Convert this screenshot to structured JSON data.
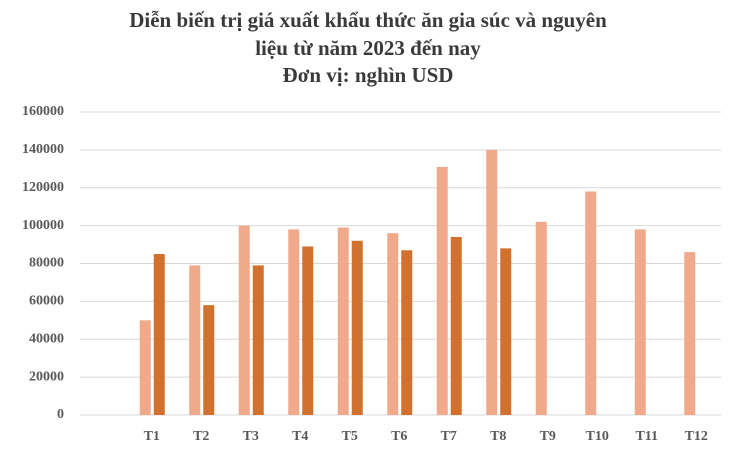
{
  "chart_data": {
    "type": "bar",
    "title": [
      "Diễn biến trị giá xuất khẩu thức ăn gia súc và nguyên",
      "liệu từ năm 2023 đến nay",
      "Đơn vị: nghìn USD"
    ],
    "categories": [
      "T1",
      "T2",
      "T3",
      "T4",
      "T5",
      "T6",
      "T7",
      "T8",
      "T9",
      "T10",
      "T11",
      "T12"
    ],
    "series": [
      {
        "color": "#f0a98a",
        "values": [
          50000,
          79000,
          100000,
          98000,
          99000,
          96000,
          131000,
          140000,
          102000,
          118000,
          98000,
          86000
        ]
      },
      {
        "color": "#d2702e",
        "values": [
          85000,
          58000,
          79000,
          89000,
          92000,
          87000,
          94000,
          88000,
          null,
          null,
          null,
          null
        ]
      }
    ],
    "ylim": [
      0,
      160000
    ],
    "yticks": [
      0,
      20000,
      40000,
      60000,
      80000,
      100000,
      120000,
      140000,
      160000
    ],
    "grid": true
  }
}
